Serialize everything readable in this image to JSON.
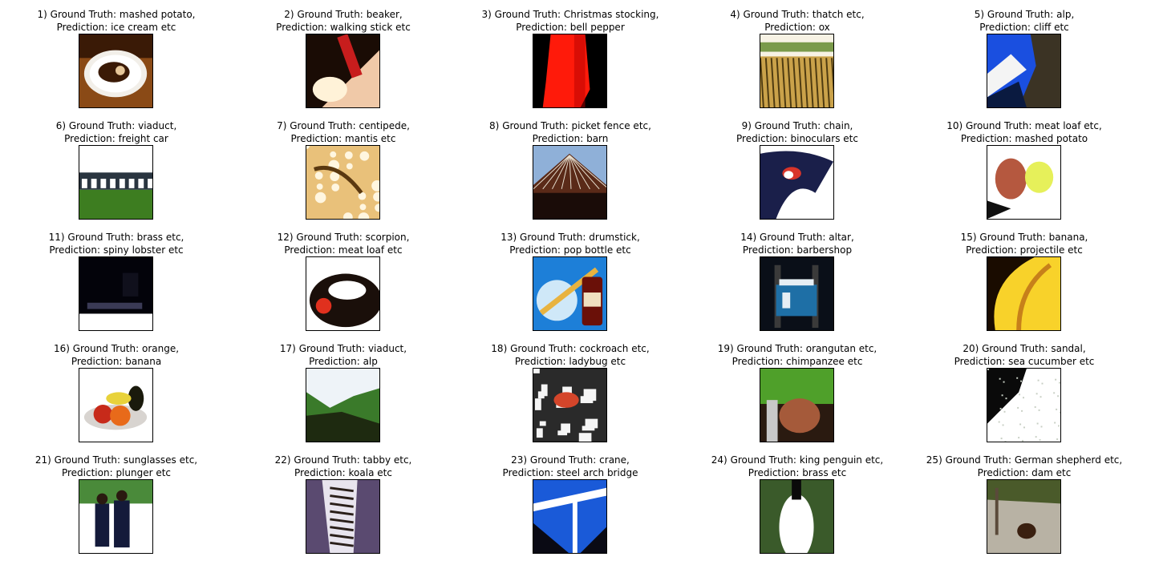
{
  "panels": [
    {
      "index": "1)",
      "ground_truth_prefix": "Ground Truth:",
      "ground_truth": "mashed potato,",
      "prediction_prefix": "Prediction:",
      "prediction": "ice cream etc",
      "scene": "plate",
      "colors": [
        "#3a1a06",
        "#f2efe9",
        "#8a4a16"
      ]
    },
    {
      "index": "2)",
      "ground_truth_prefix": "Ground Truth:",
      "ground_truth": "beaker,",
      "prediction_prefix": "Prediction:",
      "prediction": "walking stick etc",
      "scene": "hand",
      "colors": [
        "#1a0c05",
        "#f0c9a8",
        "#c71d1d"
      ]
    },
    {
      "index": "3)",
      "ground_truth_prefix": "Ground Truth:",
      "ground_truth": "Christmas stocking,",
      "prediction_prefix": "Prediction:",
      "prediction": "bell pepper",
      "scene": "stocking",
      "colors": [
        "#000000",
        "#ff1a0a",
        "#b30000"
      ]
    },
    {
      "index": "4)",
      "ground_truth_prefix": "Ground Truth:",
      "ground_truth": "thatch etc,",
      "prediction_prefix": "Prediction:",
      "prediction": "ox",
      "scene": "thatch",
      "colors": [
        "#f7f2e4",
        "#caa24a",
        "#4d3a10"
      ]
    },
    {
      "index": "5)",
      "ground_truth_prefix": "Ground Truth:",
      "ground_truth": "alp,",
      "prediction_prefix": "Prediction:",
      "prediction": "cliff etc",
      "scene": "cliff",
      "colors": [
        "#1a4fe0",
        "#f4f4f4",
        "#3b3324"
      ]
    },
    {
      "index": "6)",
      "ground_truth_prefix": "Ground Truth:",
      "ground_truth": "viaduct,",
      "prediction_prefix": "Prediction:",
      "prediction": "freight car",
      "scene": "viaduct",
      "colors": [
        "#ffffff",
        "#2a3540",
        "#3d7d20"
      ]
    },
    {
      "index": "7)",
      "ground_truth_prefix": "Ground Truth:",
      "ground_truth": "centipede,",
      "prediction_prefix": "Prediction:",
      "prediction": "mantis etc",
      "scene": "sand",
      "colors": [
        "#e9c17a",
        "#fff6e0",
        "#5a3810"
      ]
    },
    {
      "index": "8)",
      "ground_truth_prefix": "Ground Truth:",
      "ground_truth": "picket fence etc,",
      "prediction_prefix": "Prediction:",
      "prediction": "barn",
      "scene": "barn",
      "colors": [
        "#8fb0d8",
        "#5a2a18",
        "#1a0c08"
      ]
    },
    {
      "index": "9)",
      "ground_truth_prefix": "Ground Truth:",
      "ground_truth": "chain,",
      "prediction_prefix": "Prediction:",
      "prediction": "binoculars etc",
      "scene": "bird",
      "colors": [
        "#ffffff",
        "#1a1f4a",
        "#d8342a"
      ]
    },
    {
      "index": "10)",
      "ground_truth_prefix": "Ground Truth:",
      "ground_truth": "meat loaf etc,",
      "prediction_prefix": "Prediction:",
      "prediction": "mashed potato",
      "scene": "meat",
      "colors": [
        "#ffffff",
        "#b5583f",
        "#e6f05a"
      ]
    },
    {
      "index": "11)",
      "ground_truth_prefix": "Ground Truth:",
      "ground_truth": "brass etc,",
      "prediction_prefix": "Prediction:",
      "prediction": "spiny lobster etc",
      "scene": "dark",
      "colors": [
        "#03030a",
        "#ffffff",
        "#3a3a55"
      ]
    },
    {
      "index": "12)",
      "ground_truth_prefix": "Ground Truth:",
      "ground_truth": "scorpion,",
      "prediction_prefix": "Prediction:",
      "prediction": "meat loaf etc",
      "scene": "scorpion",
      "colors": [
        "#ffffff",
        "#1a0f0a",
        "#e0301e"
      ]
    },
    {
      "index": "13)",
      "ground_truth_prefix": "Ground Truth:",
      "ground_truth": "drumstick,",
      "prediction_prefix": "Prediction:",
      "prediction": "pop bottle etc",
      "scene": "drumstick",
      "colors": [
        "#1d7fd8",
        "#e8b340",
        "#6a1008"
      ]
    },
    {
      "index": "14)",
      "ground_truth_prefix": "Ground Truth:",
      "ground_truth": "altar,",
      "prediction_prefix": "Prediction:",
      "prediction": "barbershop",
      "scene": "altar",
      "colors": [
        "#0a0f18",
        "#e6eef4",
        "#1e6fa6"
      ]
    },
    {
      "index": "15)",
      "ground_truth_prefix": "Ground Truth:",
      "ground_truth": "banana,",
      "prediction_prefix": "Prediction:",
      "prediction": "projectile etc",
      "scene": "banana",
      "colors": [
        "#1a0c00",
        "#f8d22a",
        "#c7801a"
      ]
    },
    {
      "index": "16)",
      "ground_truth_prefix": "Ground Truth:",
      "ground_truth": "orange,",
      "prediction_prefix": "Prediction:",
      "prediction": "banana",
      "scene": "fruit",
      "colors": [
        "#ffffff",
        "#e86a1a",
        "#1a1a0c"
      ]
    },
    {
      "index": "17)",
      "ground_truth_prefix": "Ground Truth:",
      "ground_truth": "viaduct,",
      "prediction_prefix": "Prediction:",
      "prediction": "alp",
      "scene": "valley",
      "colors": [
        "#eef3f8",
        "#3a7a2a",
        "#1e2a10"
      ]
    },
    {
      "index": "18)",
      "ground_truth_prefix": "Ground Truth:",
      "ground_truth": "cockroach etc,",
      "prediction_prefix": "Prediction:",
      "prediction": "ladybug etc",
      "scene": "clutter",
      "colors": [
        "#2a2a2a",
        "#f5f5f5",
        "#d4452a"
      ]
    },
    {
      "index": "19)",
      "ground_truth_prefix": "Ground Truth:",
      "ground_truth": "orangutan etc,",
      "prediction_prefix": "Prediction:",
      "prediction": "chimpanzee etc",
      "scene": "foliage",
      "colors": [
        "#4fa02a",
        "#2a1a10",
        "#a55a3a"
      ]
    },
    {
      "index": "20)",
      "ground_truth_prefix": "Ground Truth:",
      "ground_truth": "sandal,",
      "prediction_prefix": "Prediction:",
      "prediction": "sea cucumber etc",
      "scene": "speckle",
      "colors": [
        "#ffffff",
        "#0a0a0a",
        "#c8cfc4"
      ]
    },
    {
      "index": "21)",
      "ground_truth_prefix": "Ground Truth:",
      "ground_truth": "sunglasses etc,",
      "prediction_prefix": "Prediction:",
      "prediction": "plunger etc",
      "scene": "people",
      "colors": [
        "#ffffff",
        "#141a3a",
        "#4a8a3a"
      ]
    },
    {
      "index": "22)",
      "ground_truth_prefix": "Ground Truth:",
      "ground_truth": "tabby etc,",
      "prediction_prefix": "Prediction:",
      "prediction": "koala etc",
      "scene": "cat",
      "colors": [
        "#5a4a70",
        "#e8e4ee",
        "#2a1f1a"
      ]
    },
    {
      "index": "23)",
      "ground_truth_prefix": "Ground Truth:",
      "ground_truth": "crane,",
      "prediction_prefix": "Prediction:",
      "prediction": "steel arch bridge",
      "scene": "crane",
      "colors": [
        "#1a5ad8",
        "#ffffff",
        "#0a0a14"
      ]
    },
    {
      "index": "24)",
      "ground_truth_prefix": "Ground Truth:",
      "ground_truth": "king penguin etc,",
      "prediction_prefix": "Prediction:",
      "prediction": "brass etc",
      "scene": "penguin",
      "colors": [
        "#3a5a2a",
        "#ffffff",
        "#0a0a0a"
      ]
    },
    {
      "index": "25)",
      "ground_truth_prefix": "Ground Truth:",
      "ground_truth": "German shepherd etc,",
      "prediction_prefix": "Prediction:",
      "prediction": "dam etc",
      "scene": "path",
      "colors": [
        "#b8b2a4",
        "#4a5a2a",
        "#3a2010"
      ]
    }
  ]
}
